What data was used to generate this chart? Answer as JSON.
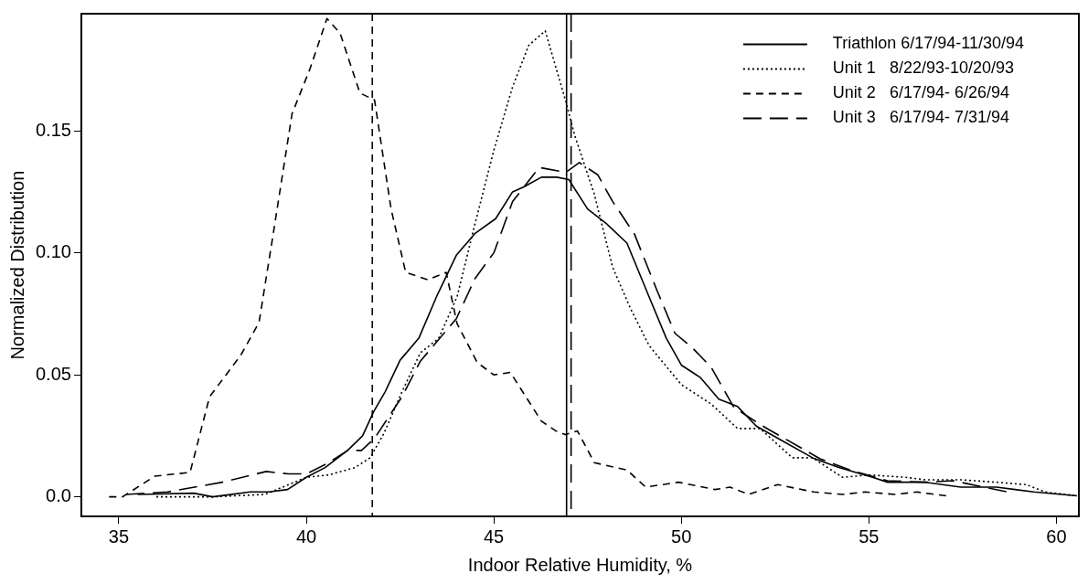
{
  "chart_data": {
    "type": "line",
    "xlabel": "Indoor Relative Humidity, %",
    "ylabel": "Normalized Distribution",
    "xlim": [
      34,
      60.6
    ],
    "ylim": [
      -0.008,
      0.198
    ],
    "xticks": [
      35,
      40,
      45,
      50,
      55,
      60
    ],
    "yticks": [
      {
        "value": 0,
        "label": "0.0"
      },
      0.05,
      {
        "value": 0.1,
        "label": "0.10"
      },
      0.15
    ],
    "grid": false,
    "legend": "top right",
    "marker": "none",
    "series": [
      {
        "name": "Triathlon 6/17/94-11/30/94",
        "color": "#000000",
        "line_style": "solid",
        "x": [
          35.5,
          37.0,
          37.5,
          38.5,
          39.0,
          39.5,
          40.0,
          40.5,
          41.1,
          41.5,
          41.8,
          42.1,
          42.5,
          43.0,
          43.5,
          44.0,
          44.5,
          45.05,
          45.5,
          45.8,
          46.27,
          46.68,
          47.0,
          47.5,
          48.0,
          48.55,
          49.14,
          49.6,
          50.0,
          50.5,
          51.0,
          51.5,
          52.0,
          52.57,
          53.5,
          54.2,
          55.1,
          55.5,
          56.5,
          57.45,
          58.4,
          58.9,
          59.4,
          60.55
        ],
        "values": [
          0.001,
          0.0015,
          0,
          0.002,
          0.002,
          0.003,
          0.008,
          0.012,
          0.019,
          0.025,
          0.035,
          0.043,
          0.056,
          0.065,
          0.083,
          0.099,
          0.108,
          0.114,
          0.125,
          0.127,
          0.131,
          0.131,
          0.13,
          0.118,
          0.112,
          0.104,
          0.082,
          0.065,
          0.054,
          0.049,
          0.04,
          0.037,
          0.029,
          0.024,
          0.016,
          0.012,
          0.008,
          0.006,
          0.006,
          0.004,
          0.004,
          0.003,
          0.002,
          0.0004
        ]
      },
      {
        "name": "Unit 1   8/22/93-10/20/93",
        "color": "#000000",
        "line_style": "dotted",
        "x": [
          36.0,
          37.5,
          38.9,
          40.0,
          40.6,
          41.3,
          41.7,
          42.07,
          42.55,
          43.04,
          43.53,
          44.02,
          44.5,
          45.0,
          45.5,
          45.93,
          46.37,
          46.92,
          47.16,
          47.68,
          48.17,
          48.65,
          49.14,
          50.0,
          50.8,
          51.5,
          52.1,
          52.96,
          53.5,
          54.3,
          55.0,
          55.98,
          56.5,
          57.45,
          58.4,
          59.2,
          59.7,
          60.55
        ],
        "values": [
          0,
          0,
          0.001,
          0.008,
          0.009,
          0.012,
          0.016,
          0.026,
          0.043,
          0.059,
          0.065,
          0.082,
          0.112,
          0.142,
          0.168,
          0.185,
          0.191,
          0.162,
          0.148,
          0.124,
          0.094,
          0.077,
          0.062,
          0.046,
          0.038,
          0.028,
          0.028,
          0.016,
          0.016,
          0.008,
          0.009,
          0.008,
          0.007,
          0.007,
          0.006,
          0.005,
          0.002,
          0.0004
        ]
      },
      {
        "name": "Unit 2   6/17/94- 6/26/94",
        "color": "#000000",
        "line_style": "dashed",
        "x": [
          34.74,
          35.1,
          35.96,
          36.9,
          37.42,
          38.25,
          38.74,
          39.13,
          39.62,
          40.1,
          40.55,
          40.9,
          41.43,
          41.82,
          42.26,
          42.65,
          43.24,
          43.73,
          44.02,
          44.56,
          45.0,
          45.44,
          46.27,
          46.66,
          46.9,
          47.23,
          47.68,
          48.55,
          49.05,
          49.93,
          50.9,
          51.3,
          51.79,
          52.57,
          53.53,
          54.3,
          54.9,
          55.7,
          56.28,
          57.06
        ],
        "values": [
          0,
          0,
          0.0085,
          0.01,
          0.041,
          0.058,
          0.0715,
          0.109,
          0.157,
          0.1755,
          0.196,
          0.19,
          0.1655,
          0.1626,
          0.118,
          0.092,
          0.089,
          0.092,
          0.071,
          0.055,
          0.05,
          0.051,
          0.031,
          0.027,
          0.0255,
          0.027,
          0.014,
          0.011,
          0.004,
          0.006,
          0.003,
          0.004,
          0.001,
          0.005,
          0.002,
          0.001,
          0.002,
          0.001,
          0.002,
          0.0004
        ]
      },
      {
        "name": "Unit 3   6/17/94- 7/31/94",
        "color": "#000000",
        "line_style": "long-dashed",
        "x": [
          35.2,
          36.3,
          37.76,
          38.93,
          39.52,
          40.0,
          40.6,
          41.1,
          41.47,
          41.82,
          42.55,
          43.04,
          44.0,
          44.5,
          45.0,
          45.5,
          46.21,
          46.92,
          47.28,
          47.77,
          48.17,
          48.75,
          49.34,
          49.83,
          50.3,
          50.8,
          51.4,
          52.17,
          53.7,
          54.5,
          55.5,
          56.5,
          57.25,
          58.7
        ],
        "values": [
          0.001,
          0.002,
          0.006,
          0.0104,
          0.0094,
          0.0094,
          0.014,
          0.019,
          0.019,
          0.024,
          0.041,
          0.0556,
          0.073,
          0.0895,
          0.1,
          0.121,
          0.135,
          0.133,
          0.137,
          0.132,
          0.121,
          0.1077,
          0.085,
          0.067,
          0.061,
          0.053,
          0.0367,
          0.029,
          0.0156,
          0.011,
          0.0066,
          0.006,
          0.0066,
          0.002
        ]
      }
    ],
    "ref_lines": [
      {
        "axis": "x",
        "value": 41.76,
        "color": "#000000",
        "line_style": "dashed"
      },
      {
        "axis": "x",
        "value": 46.94,
        "color": "#000000",
        "line_style": "solid"
      },
      {
        "axis": "x",
        "value": 47.06,
        "color": "#000000",
        "line_style": "long-dashed"
      }
    ]
  }
}
